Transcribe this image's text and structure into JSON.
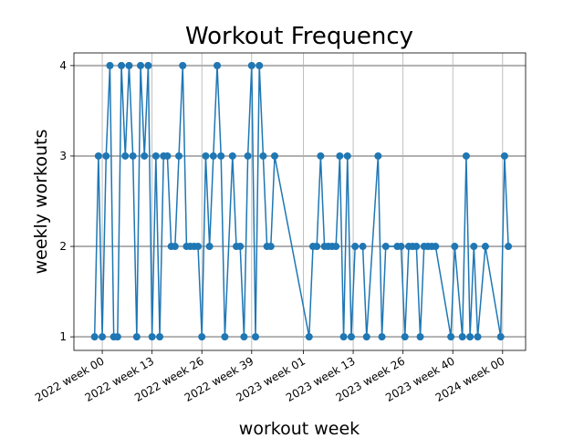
{
  "chart_data": {
    "type": "line",
    "title": "Workout Frequency",
    "xlabel": "workout week",
    "ylabel": "weekly workouts",
    "x": [
      -2,
      -1,
      0,
      1,
      2,
      3,
      4,
      5,
      6,
      7,
      8,
      9,
      10,
      11,
      12,
      13,
      14,
      15,
      16,
      17,
      18,
      19,
      20,
      21,
      22,
      23,
      24,
      25,
      26,
      27,
      28,
      29,
      30,
      31,
      32,
      34,
      35,
      36,
      37,
      38,
      39,
      40,
      41,
      42,
      43,
      44,
      45,
      54,
      55,
      56,
      57,
      58,
      59,
      60,
      61,
      62,
      63,
      64,
      65,
      66,
      68,
      69,
      72,
      73,
      74,
      77,
      78,
      79,
      80,
      81,
      82,
      83,
      84,
      85,
      86,
      87,
      91,
      92,
      94,
      95,
      96,
      97,
      98,
      100,
      104,
      105,
      106
    ],
    "series": [
      {
        "name": "weekly workouts",
        "color": "#1f77b4",
        "values": [
          1,
          3,
          1,
          3,
          4,
          1,
          1,
          4,
          3,
          4,
          3,
          1,
          4,
          3,
          4,
          1,
          3,
          1,
          3,
          3,
          2,
          2,
          3,
          4,
          2,
          2,
          2,
          2,
          1,
          3,
          2,
          3,
          4,
          3,
          1,
          3,
          2,
          2,
          1,
          3,
          4,
          1,
          4,
          3,
          2,
          2,
          3,
          1,
          2,
          2,
          3,
          2,
          2,
          2,
          2,
          3,
          1,
          3,
          1,
          2,
          2,
          1,
          3,
          1,
          2,
          2,
          2,
          1,
          2,
          2,
          2,
          1,
          2,
          2,
          2,
          2,
          1,
          2,
          1,
          3,
          1,
          2,
          1,
          2,
          1,
          3,
          2
        ]
      }
    ],
    "xlim": [
      -7.4,
      110.5
    ],
    "xticks": [
      {
        "value": 0,
        "label": "2022 week 00"
      },
      {
        "value": 13,
        "label": "2022 week 13"
      },
      {
        "value": 26,
        "label": "2022 week 26"
      },
      {
        "value": 39,
        "label": "2022 week 39"
      },
      {
        "value": 52.5,
        "label": "2023 week 01"
      },
      {
        "value": 65.5,
        "label": "2023 week 13"
      },
      {
        "value": 78.5,
        "label": "2023 week 26"
      },
      {
        "value": 91.5,
        "label": "2023 week 40"
      },
      {
        "value": 104.5,
        "label": "2024 week 00"
      }
    ],
    "ylim": [
      0.85,
      4.14
    ],
    "yticks": [
      1,
      2,
      3,
      4
    ],
    "grid": true
  }
}
